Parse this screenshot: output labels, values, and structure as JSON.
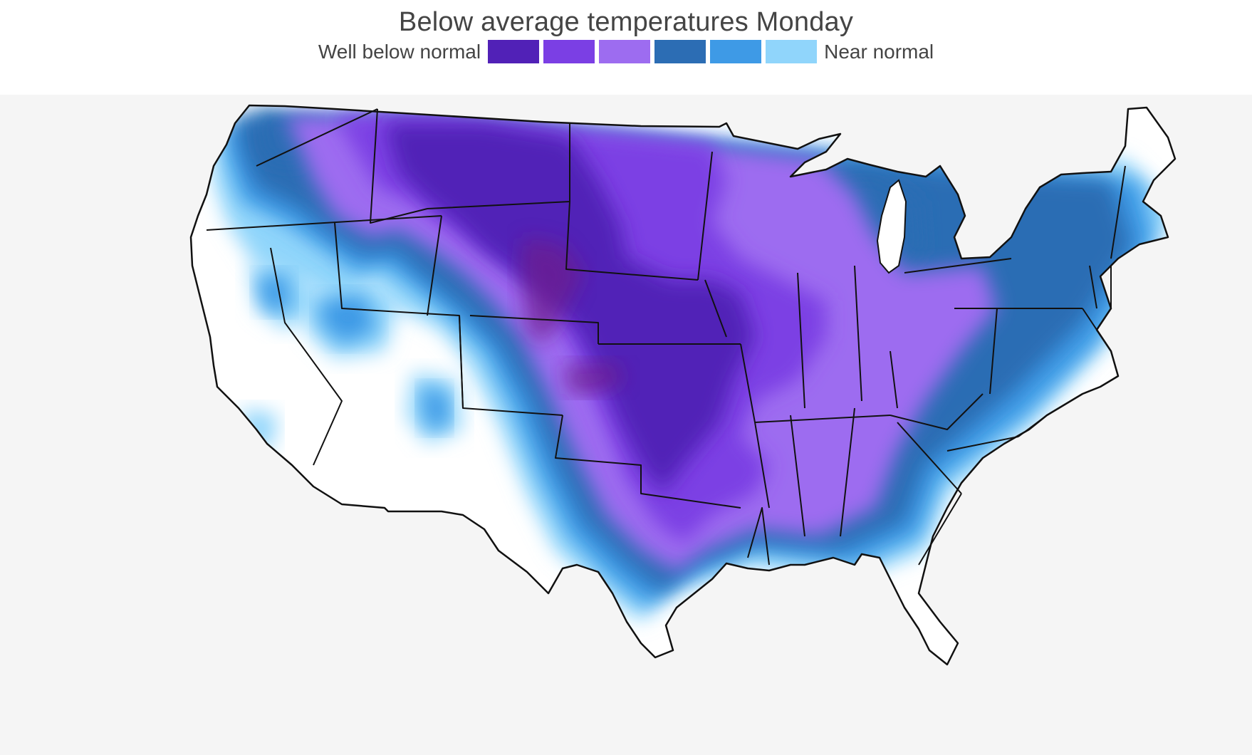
{
  "title": "Below average temperatures Monday",
  "legend": {
    "low_label": "Well below normal",
    "high_label": "Near normal",
    "colors": [
      "#5121b7",
      "#7b3fe4",
      "#9d6cf0",
      "#2c6db4",
      "#3e9ae6",
      "#90d5fb"
    ]
  },
  "map": {
    "region": "contiguous-united-states",
    "background_color": "#f5f5f5",
    "land_color": "#ffffff",
    "extreme_color": "#6e1f8c",
    "border_color": "#111111"
  }
}
